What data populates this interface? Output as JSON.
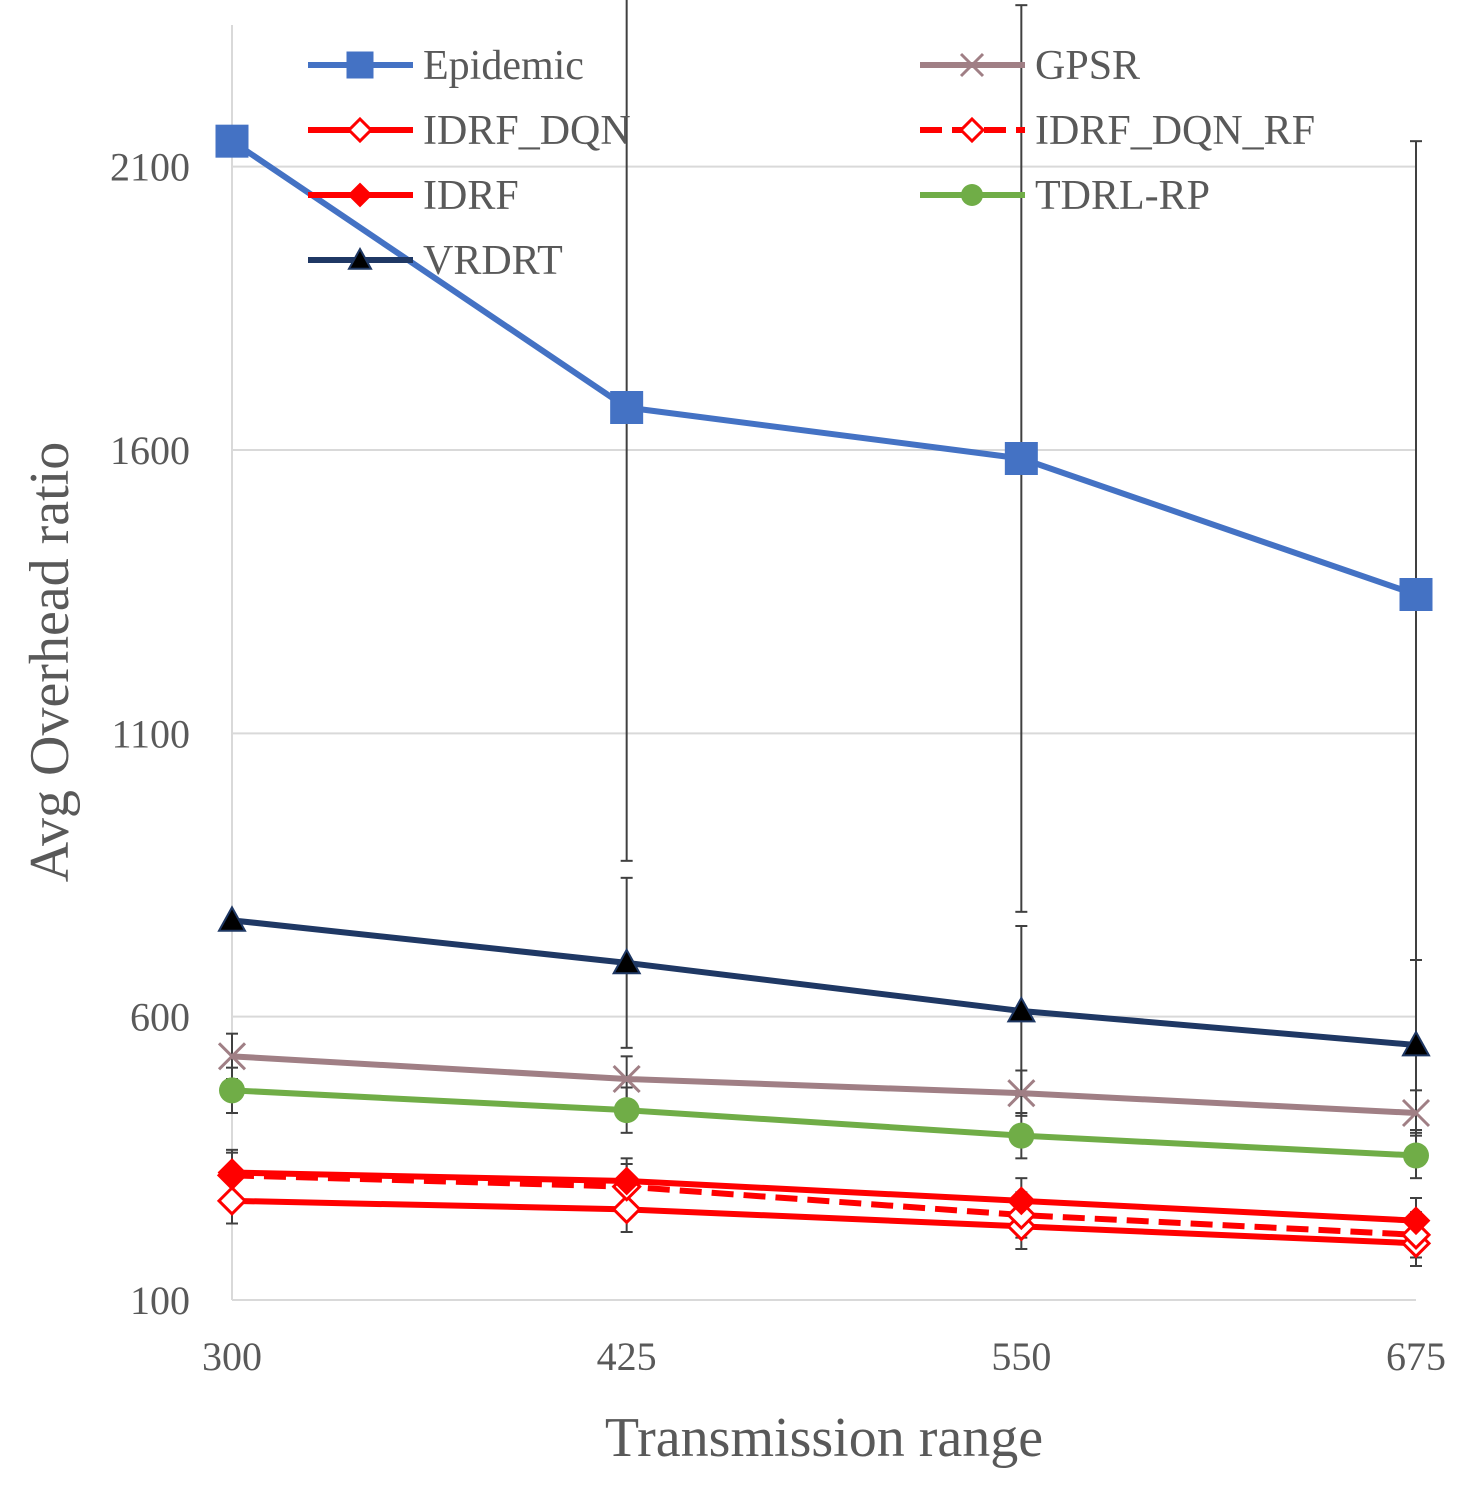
{
  "chart_data": {
    "type": "line",
    "title": "",
    "xlabel": "Transmission range",
    "ylabel": "Avg Overhead ratio",
    "categories": [
      "300",
      "425",
      "550",
      "675"
    ],
    "ylim": [
      100,
      2350
    ],
    "yticks": [
      "100",
      "600",
      "1100",
      "1600",
      "2100"
    ],
    "ytick_values": [
      100,
      600,
      1100,
      1600,
      2100
    ],
    "grid": true,
    "legend_position": "top",
    "series": [
      {
        "name": "Epidemic",
        "values": [
          2145,
          1675,
          1585,
          1345
        ],
        "color": "#4472c4",
        "marker": "square",
        "dash": false,
        "error": [
          0,
          800,
          800,
          800
        ]
      },
      {
        "name": "GPSR",
        "values": [
          530,
          490,
          465,
          430
        ],
        "color": "#a07f85",
        "marker": "x",
        "dash": false,
        "error": [
          40,
          40,
          40,
          40
        ]
      },
      {
        "name": "IDRF_DQN",
        "values": [
          275,
          260,
          230,
          200
        ],
        "color": "#ff0000",
        "marker": "diamond-open",
        "dash": false,
        "error": [
          40,
          40,
          40,
          40
        ]
      },
      {
        "name": "IDRF_DQN_RF",
        "values": [
          320,
          300,
          250,
          215
        ],
        "color": "#ff0000",
        "marker": "diamond-open",
        "dash": true,
        "error": [
          40,
          40,
          40,
          40
        ]
      },
      {
        "name": "IDRF",
        "values": [
          325,
          310,
          275,
          240
        ],
        "color": "#ff0000",
        "marker": "diamond",
        "dash": false,
        "error": [
          40,
          40,
          40,
          40
        ]
      },
      {
        "name": "TDRL-RP",
        "values": [
          470,
          435,
          390,
          355
        ],
        "color": "#70ad47",
        "marker": "circle",
        "dash": false,
        "error": [
          40,
          40,
          40,
          40
        ]
      },
      {
        "name": "VRDRT",
        "values": [
          770,
          695,
          610,
          550
        ],
        "color": "#1f3864",
        "marker": "triangle",
        "dash": false,
        "error": [
          0,
          150,
          150,
          150
        ]
      }
    ]
  }
}
